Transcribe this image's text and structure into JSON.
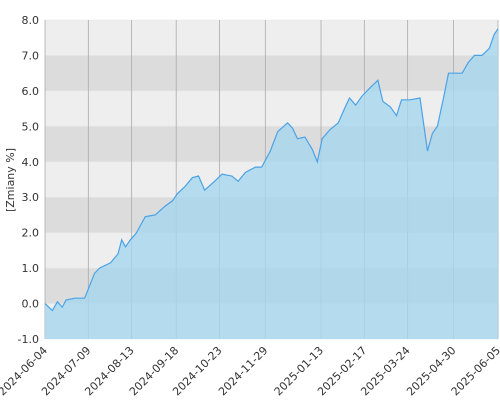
{
  "chart_data": {
    "type": "area",
    "y_label": "[Zmiany %]",
    "line_color": "#4aa3e6",
    "fill_color": "#a6d6ee",
    "grid": true,
    "xlim": [
      "2024-06-04",
      "2025-06-05"
    ],
    "xticks": [
      "2024-06-04",
      "2024-07-09",
      "2024-08-13",
      "2024-09-18",
      "2024-10-23",
      "2024-11-29",
      "2025-01-13",
      "2025-02-17",
      "2025-03-24",
      "2025-04-30",
      "2025-06-05"
    ],
    "ylim": [
      -1,
      8
    ],
    "yticks": [
      {
        "value": -1,
        "label": "-1.0"
      },
      {
        "value": 0,
        "label": "0.0"
      },
      {
        "value": 1,
        "label": "1.0"
      },
      {
        "value": 2,
        "label": "2.0"
      },
      {
        "value": 3,
        "label": "3.0"
      },
      {
        "value": 4,
        "label": "4.0"
      },
      {
        "value": 5,
        "label": "5.0"
      },
      {
        "value": 6,
        "label": "6.0"
      },
      {
        "value": 7,
        "label": "7.0"
      },
      {
        "value": 8,
        "label": "8.0"
      }
    ],
    "x": [
      "2024-06-04",
      "2024-06-10",
      "2024-06-14",
      "2024-06-18",
      "2024-06-21",
      "2024-06-28",
      "2024-07-06",
      "2024-07-10",
      "2024-07-14",
      "2024-07-18",
      "2024-07-27",
      "2024-08-02",
      "2024-08-05",
      "2024-08-08",
      "2024-08-12",
      "2024-08-17",
      "2024-08-20",
      "2024-08-24",
      "2024-09-01",
      "2024-09-09",
      "2024-09-15",
      "2024-09-19",
      "2024-09-25",
      "2024-10-01",
      "2024-10-06",
      "2024-10-11",
      "2024-10-19",
      "2024-10-25",
      "2024-11-02",
      "2024-11-07",
      "2024-11-13",
      "2024-11-21",
      "2024-11-26",
      "2024-12-03",
      "2024-12-09",
      "2024-12-17",
      "2024-12-21",
      "2024-12-25",
      "2024-12-31",
      "2025-01-06",
      "2025-01-10",
      "2025-01-14",
      "2025-01-20",
      "2025-01-27",
      "2025-02-01",
      "2025-02-05",
      "2025-02-10",
      "2025-02-15",
      "2025-02-22",
      "2025-02-28",
      "2025-03-04",
      "2025-03-10",
      "2025-03-15",
      "2025-03-19",
      "2025-03-26",
      "2025-04-03",
      "2025-04-07",
      "2025-04-09",
      "2025-04-13",
      "2025-04-17",
      "2025-04-22",
      "2025-04-26",
      "2025-05-07",
      "2025-05-12",
      "2025-05-17",
      "2025-05-23",
      "2025-05-29",
      "2025-06-02",
      "2025-06-05"
    ],
    "values": [
      0.0,
      -0.2,
      0.05,
      -0.1,
      0.1,
      0.15,
      0.15,
      0.5,
      0.85,
      1.0,
      1.15,
      1.4,
      1.8,
      1.6,
      1.8,
      2.0,
      2.2,
      2.45,
      2.5,
      2.75,
      2.9,
      3.1,
      3.3,
      3.55,
      3.6,
      3.2,
      3.45,
      3.65,
      3.6,
      3.45,
      3.7,
      3.85,
      3.85,
      4.3,
      4.85,
      5.1,
      4.95,
      4.65,
      4.7,
      4.35,
      4.0,
      4.65,
      4.9,
      5.1,
      5.5,
      5.8,
      5.6,
      5.85,
      6.1,
      6.3,
      5.7,
      5.55,
      5.3,
      5.75,
      5.75,
      5.8,
      4.8,
      4.3,
      4.8,
      5.0,
      5.8,
      6.5,
      6.5,
      6.8,
      7.0,
      7.0,
      7.2,
      7.6,
      7.75
    ]
  }
}
